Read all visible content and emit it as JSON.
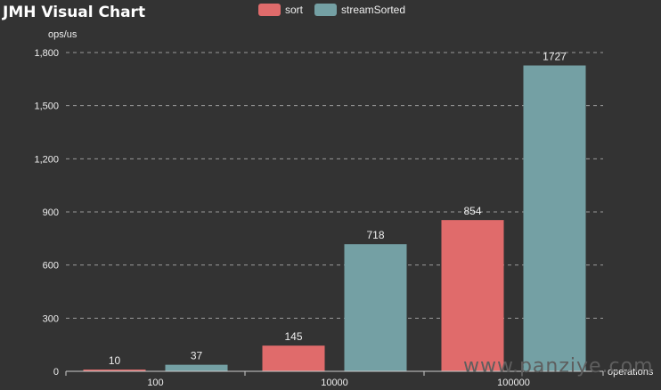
{
  "chart_data": {
    "type": "bar",
    "title": "JMH Visual Chart",
    "ylabel": "ops/us",
    "xlabel": "operations",
    "categories": [
      "100",
      "10000",
      "100000"
    ],
    "series": [
      {
        "name": "sort",
        "color": "#e06b6b",
        "values": [
          10,
          145,
          854
        ]
      },
      {
        "name": "streamSorted",
        "color": "#74a0a4",
        "values": [
          37,
          718,
          1727
        ]
      }
    ],
    "ylim": [
      0,
      1800
    ],
    "yticks": [
      "0",
      "300",
      "600",
      "900",
      "1,200",
      "1,500",
      "1,800"
    ],
    "grid": true,
    "legend_position": "top-center"
  },
  "watermark": "www.panziye.com"
}
